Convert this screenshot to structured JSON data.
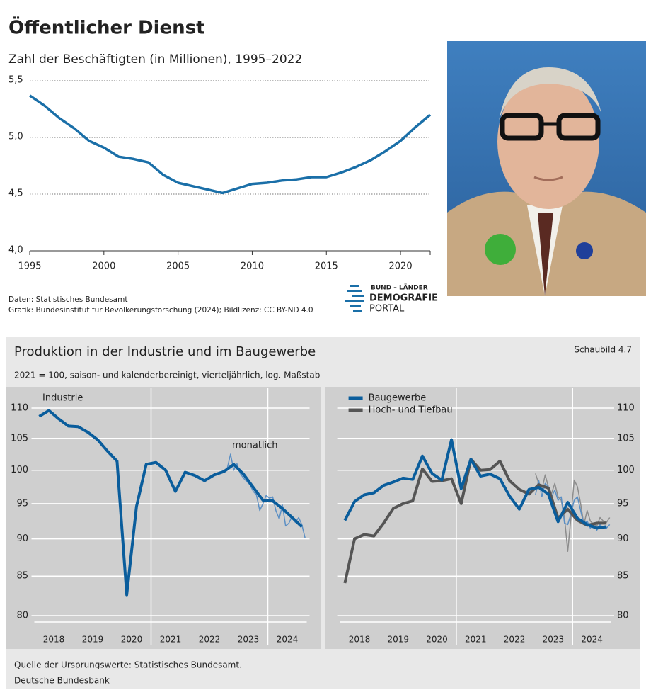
{
  "chart_data": [
    {
      "type": "line",
      "title": "Öffentlicher Dienst",
      "subtitle": "Zahl der Beschäftigten (in Millionen), 1995–2022",
      "x": [
        1995,
        1996,
        1997,
        1998,
        1999,
        2000,
        2001,
        2002,
        2003,
        2004,
        2005,
        2006,
        2007,
        2008,
        2009,
        2010,
        2011,
        2012,
        2013,
        2014,
        2015,
        2016,
        2017,
        2018,
        2019,
        2020,
        2021,
        2022
      ],
      "values": [
        5.37,
        5.28,
        5.17,
        5.08,
        4.97,
        4.91,
        4.83,
        4.81,
        4.78,
        4.67,
        4.6,
        4.57,
        4.54,
        4.51,
        4.55,
        4.59,
        4.6,
        4.62,
        4.63,
        4.65,
        4.65,
        4.69,
        4.74,
        4.8,
        4.88,
        4.97,
        5.09,
        5.2
      ],
      "color": "#1a6fa8",
      "line_width": 3.5,
      "xlim": [
        1995,
        2022
      ],
      "xticks": [
        1995,
        2000,
        2005,
        2010,
        2015,
        2020
      ],
      "ylim": [
        4.0,
        5.5
      ],
      "yticks": [
        {
          "value": 4.0,
          "label": "4,0"
        },
        {
          "value": 4.5,
          "label": "4,5"
        },
        {
          "value": 5.0,
          "label": "5,0"
        },
        {
          "value": 5.5,
          "label": "5,5"
        }
      ],
      "grid": true,
      "source": [
        "Daten: Statistisches Bundesamt",
        "Grafik: Bundesinstitut für Bevölkerungsforschung (2024); Bildlizenz: CC BY-ND 4.0"
      ]
    },
    {
      "type": "line",
      "panel_label": "Industrie",
      "annotation": "monatlich",
      "log_scale": true,
      "yaxis_side": "left",
      "xlim": [
        2018,
        2025
      ],
      "xticks": [
        {
          "value": 2018.5,
          "label": "2018"
        },
        {
          "value": 2019.5,
          "label": "2019"
        },
        {
          "value": 2020.5,
          "label": "2020"
        },
        {
          "value": 2021.5,
          "label": "2021"
        },
        {
          "value": 2022.5,
          "label": "2022"
        },
        {
          "value": 2023.5,
          "label": "2023"
        },
        {
          "value": 2024.5,
          "label": "2024"
        }
      ],
      "vlines": [
        2021,
        2024
      ],
      "ylim": [
        80,
        113.4
      ],
      "yticks": [
        80,
        85,
        90,
        95,
        100,
        105,
        110
      ],
      "grid": true,
      "series": [
        {
          "color": "#5b8fc4",
          "line_width": 1.5,
          "x": [
            2022.875,
            2022.958,
            2023.042,
            2023.125,
            2023.208,
            2023.292,
            2023.375,
            2023.458,
            2023.542,
            2023.625,
            2023.708,
            2023.792,
            2023.875,
            2023.958,
            2024.042,
            2024.125,
            2024.208,
            2024.292,
            2024.375,
            2024.458,
            2024.542,
            2024.625,
            2024.708,
            2024.792,
            2024.875,
            2024.958
          ],
          "values": [
            99.8,
            100.3,
            102.5,
            100.0,
            101.0,
            99.5,
            98.8,
            98.3,
            97.8,
            96.8,
            96.3,
            94.0,
            95.0,
            96.2,
            95.8,
            96.0,
            94.0,
            92.8,
            94.8,
            91.8,
            92.2,
            93.2,
            92.3,
            93.0,
            92.0,
            90.1
          ]
        },
        {
          "color": "#0a5d9c",
          "line_width": 4,
          "x": [
            2018.125,
            2018.375,
            2018.625,
            2018.875,
            2019.125,
            2019.375,
            2019.625,
            2019.875,
            2020.125,
            2020.375,
            2020.625,
            2020.875,
            2021.125,
            2021.375,
            2021.625,
            2021.875,
            2022.125,
            2022.375,
            2022.625,
            2022.875,
            2023.125,
            2023.375,
            2023.625,
            2023.875,
            2024.125,
            2024.375,
            2024.625,
            2024.875
          ],
          "values": [
            108.6,
            109.6,
            108.2,
            107.0,
            106.9,
            106.0,
            104.8,
            103.0,
            101.4,
            82.6,
            94.6,
            100.9,
            101.2,
            100.0,
            96.8,
            99.7,
            99.2,
            98.4,
            99.3,
            99.8,
            100.9,
            99.4,
            97.4,
            95.5,
            95.4,
            94.3,
            93.0,
            91.7
          ]
        }
      ]
    },
    {
      "type": "line",
      "log_scale": true,
      "yaxis_side": "right",
      "xlim": [
        2018,
        2025
      ],
      "xticks": [
        {
          "value": 2018.5,
          "label": "2018"
        },
        {
          "value": 2019.5,
          "label": "2019"
        },
        {
          "value": 2020.5,
          "label": "2020"
        },
        {
          "value": 2021.5,
          "label": "2021"
        },
        {
          "value": 2022.5,
          "label": "2022"
        },
        {
          "value": 2023.5,
          "label": "2023"
        },
        {
          "value": 2024.5,
          "label": "2024"
        }
      ],
      "vlines": [
        2021,
        2024
      ],
      "ylim": [
        80,
        113.4
      ],
      "yticks": [
        80,
        85,
        90,
        95,
        100,
        105,
        110
      ],
      "grid": true,
      "series": [
        {
          "color": "#8c8c8c",
          "line_width": 1.5,
          "x": [
            2023.042,
            2023.125,
            2023.208,
            2023.292,
            2023.375,
            2023.458,
            2023.542,
            2023.625,
            2023.708,
            2023.792,
            2023.875,
            2023.958,
            2024.042,
            2024.125,
            2024.208,
            2024.292,
            2024.375,
            2024.458,
            2024.542,
            2024.625,
            2024.708,
            2024.792,
            2024.875,
            2024.958
          ],
          "values": [
            99.5,
            98.0,
            97.0,
            99.3,
            97.5,
            96.5,
            98.0,
            96.0,
            95.5,
            93.0,
            88.3,
            93.0,
            98.5,
            97.5,
            95.0,
            92.0,
            94.0,
            92.5,
            92.0,
            91.8,
            93.0,
            92.5,
            92.3,
            93.0
          ]
        },
        {
          "color": "#5b8fc4",
          "line_width": 1.5,
          "x": [
            2023.042,
            2023.125,
            2023.208,
            2023.292,
            2023.375,
            2023.458,
            2023.542,
            2023.625,
            2023.708,
            2023.792,
            2023.875,
            2023.958,
            2024.042,
            2024.125,
            2024.208,
            2024.292,
            2024.375,
            2024.458,
            2024.542,
            2024.625,
            2024.708,
            2024.792,
            2024.875,
            2024.958
          ],
          "values": [
            96.3,
            98.5,
            96.0,
            98.0,
            97.5,
            96.0,
            97.0,
            95.5,
            96.0,
            92.2,
            92.0,
            93.5,
            95.5,
            96.0,
            94.0,
            92.0,
            92.5,
            91.5,
            92.0,
            91.2,
            92.0,
            91.5,
            91.5,
            92.0
          ]
        },
        {
          "name": "Hoch- und Tiefbau",
          "color": "#555555",
          "line_width": 4,
          "x": [
            2018.125,
            2018.375,
            2018.625,
            2018.875,
            2019.125,
            2019.375,
            2019.625,
            2019.875,
            2020.125,
            2020.375,
            2020.625,
            2020.875,
            2021.125,
            2021.375,
            2021.625,
            2021.875,
            2022.125,
            2022.375,
            2022.625,
            2022.875,
            2023.125,
            2023.375,
            2023.625,
            2023.875,
            2024.125,
            2024.375,
            2024.625,
            2024.875
          ],
          "values": [
            84.1,
            90.0,
            90.6,
            90.4,
            92.2,
            94.3,
            95.0,
            95.4,
            100.2,
            98.3,
            98.4,
            98.7,
            95.0,
            101.7,
            100.0,
            100.1,
            101.4,
            98.4,
            97.1,
            96.4,
            97.8,
            97.3,
            92.9,
            94.2,
            92.6,
            91.9,
            92.2,
            92.2
          ]
        },
        {
          "name": "Baugewerbe",
          "color": "#0a5d9c",
          "line_width": 4,
          "x": [
            2018.125,
            2018.375,
            2018.625,
            2018.875,
            2019.125,
            2019.375,
            2019.625,
            2019.875,
            2020.125,
            2020.375,
            2020.625,
            2020.875,
            2021.125,
            2021.375,
            2021.625,
            2021.875,
            2022.125,
            2022.375,
            2022.625,
            2022.875,
            2023.125,
            2023.375,
            2023.625,
            2023.875,
            2024.125,
            2024.375,
            2024.625,
            2024.875
          ],
          "values": [
            92.6,
            95.3,
            96.3,
            96.6,
            97.7,
            98.2,
            98.8,
            98.6,
            102.2,
            99.5,
            98.5,
            104.8,
            97.2,
            101.7,
            99.1,
            99.4,
            98.7,
            96.1,
            94.2,
            97.1,
            97.4,
            96.4,
            92.4,
            95.2,
            92.9,
            92.0,
            91.5,
            91.7
          ]
        }
      ]
    }
  ],
  "figure": {
    "title": "Produktion in der Industrie und im Baugewerbe",
    "label": "Schaubild 4.7",
    "subtitle": "2021 = 100, saison- und kalenderbereinigt, vierteljährlich, log. Maßstab",
    "source": [
      "Quelle der Ursprungswerte: Statistisches Bundesamt.",
      "Deutsche Bundesbank"
    ]
  },
  "logo": {
    "lines": [
      "BUND – LÄNDER",
      "DEMOGRAFIE",
      "PORTAL"
    ]
  }
}
